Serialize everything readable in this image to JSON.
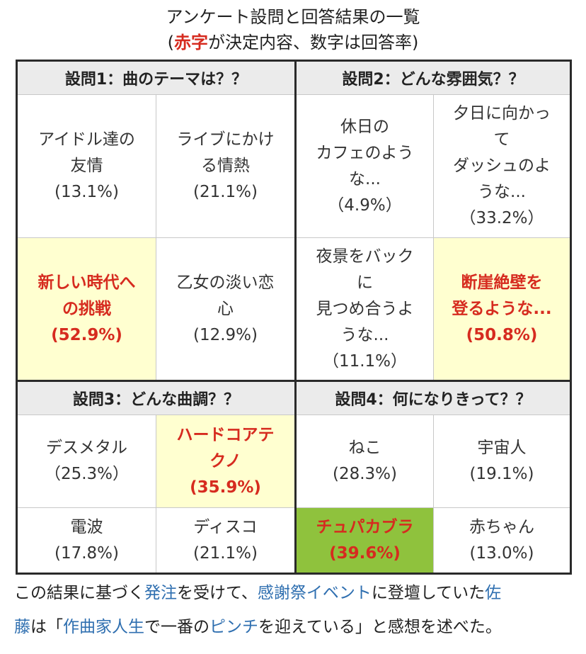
{
  "caption": {
    "line1": "アンケート設問と回答結果の一覧",
    "line2_open": "(",
    "line2_red": "赤字",
    "line2_rest": "が決定内容、数字は回答率)"
  },
  "questions": [
    {
      "title": "設問1：曲のテーマは？？",
      "options": [
        {
          "lines": [
            "アイドル達の",
            "友情"
          ],
          "pct": "(13.1%)"
        },
        {
          "lines": [
            "ライブにかけ",
            "る情熱"
          ],
          "pct": "(21.1%)"
        },
        {
          "lines": [
            "新しい時代へ",
            "の挑戦"
          ],
          "pct": "(52.9%)"
        },
        {
          "lines": [
            "乙女の淡い恋",
            "心"
          ],
          "pct": "(12.9%)"
        }
      ]
    },
    {
      "title": "設問2：どんな雰囲気？？",
      "options": [
        {
          "lines": [
            "休日の",
            "カフェのよう",
            "な..."
          ],
          "pct": "（4.9%）"
        },
        {
          "lines": [
            "夕日に向かっ",
            "て",
            "ダッシュのよ",
            "うな..."
          ],
          "pct": "（33.2%）"
        },
        {
          "lines": [
            "夜景をバック",
            "に",
            "見つめ合うよ",
            "うな..."
          ],
          "pct": "（11.1%）"
        },
        {
          "lines": [
            "断崖絶壁を",
            "登るような..."
          ],
          "pct": "(50.8%)"
        }
      ]
    },
    {
      "title": "設問3：どんな曲調？？",
      "options": [
        {
          "lines": [
            "デスメタル"
          ],
          "pct": "（25.3%）"
        },
        {
          "lines": [
            "ハードコアテ",
            "クノ"
          ],
          "pct": "(35.9%)"
        },
        {
          "lines": [
            "電波"
          ],
          "pct": "(17.8%)"
        },
        {
          "lines": [
            "ディスコ"
          ],
          "pct": "(21.1%)"
        }
      ]
    },
    {
      "title": "設問4：何になりきって？？",
      "options": [
        {
          "lines": [
            "ねこ"
          ],
          "pct": "(28.3%)"
        },
        {
          "lines": [
            "宇宙人"
          ],
          "pct": "(19.1%)"
        },
        {
          "lines": [
            "チュパカブラ"
          ],
          "pct": "(39.6%)"
        },
        {
          "lines": [
            "赤ちゃん"
          ],
          "pct": "(13.0%)"
        }
      ]
    }
  ],
  "note": {
    "p1": "この結果に基づく",
    "link1": "発注",
    "p2": "を受けて、",
    "link2": "感謝祭イベント",
    "p3": "に登壇していた",
    "link3": "佐",
    "link3b": "藤",
    "p4": "は「",
    "link4": "作曲家人生",
    "p5": "で一番の",
    "link5": "ピンチ",
    "p6": "を迎えている」と感想を述べた。"
  },
  "colors": {
    "chosen_text": "#d62b1f",
    "chosen_bg": "#ffffd0",
    "green_bg": "#8fc23d",
    "link": "#2f6fb0",
    "header_bg": "#ebebeb"
  }
}
